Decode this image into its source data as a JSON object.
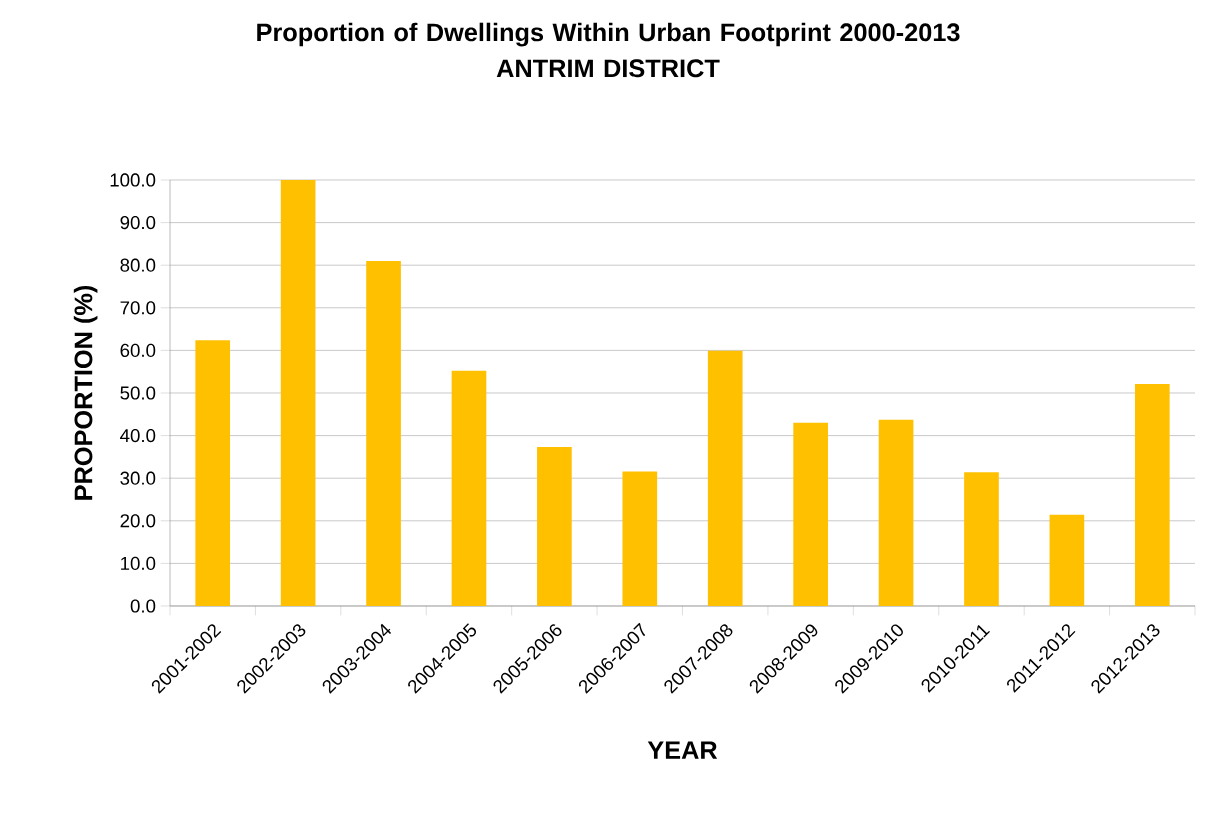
{
  "chart_data": {
    "type": "bar",
    "title": "Proportion of Dwellings Within Urban Footprint 2000-2013",
    "subtitle": "ANTRIM DISTRICT",
    "xlabel": "YEAR",
    "ylabel": "PROPORTION (%)",
    "categories": [
      "2001-2002",
      "2002-2003",
      "2003-2004",
      "2004-2005",
      "2005-2006",
      "2006-2007",
      "2007-2008",
      "2008-2009",
      "2009-2010",
      "2010-2011",
      "2011-2012",
      "2012-2013"
    ],
    "values": [
      62.4,
      100.0,
      81.0,
      55.2,
      37.3,
      31.6,
      59.9,
      43.0,
      43.7,
      31.4,
      21.4,
      52.1
    ],
    "color": "#ffc000",
    "ylim": [
      0,
      100
    ],
    "yticks": [
      {
        "value": 0,
        "label": "0.0"
      },
      {
        "value": 10,
        "label": "10.0"
      },
      {
        "value": 20,
        "label": "20.0"
      },
      {
        "value": 30,
        "label": "30.0"
      },
      {
        "value": 40,
        "label": "40.0"
      },
      {
        "value": 50,
        "label": "50.0"
      },
      {
        "value": 60,
        "label": "60.0"
      },
      {
        "value": 70,
        "label": "70.0"
      },
      {
        "value": 80,
        "label": "80.0"
      },
      {
        "value": 90,
        "label": "90.0"
      },
      {
        "value": 100,
        "label": "100.0"
      }
    ],
    "grid": "y"
  }
}
